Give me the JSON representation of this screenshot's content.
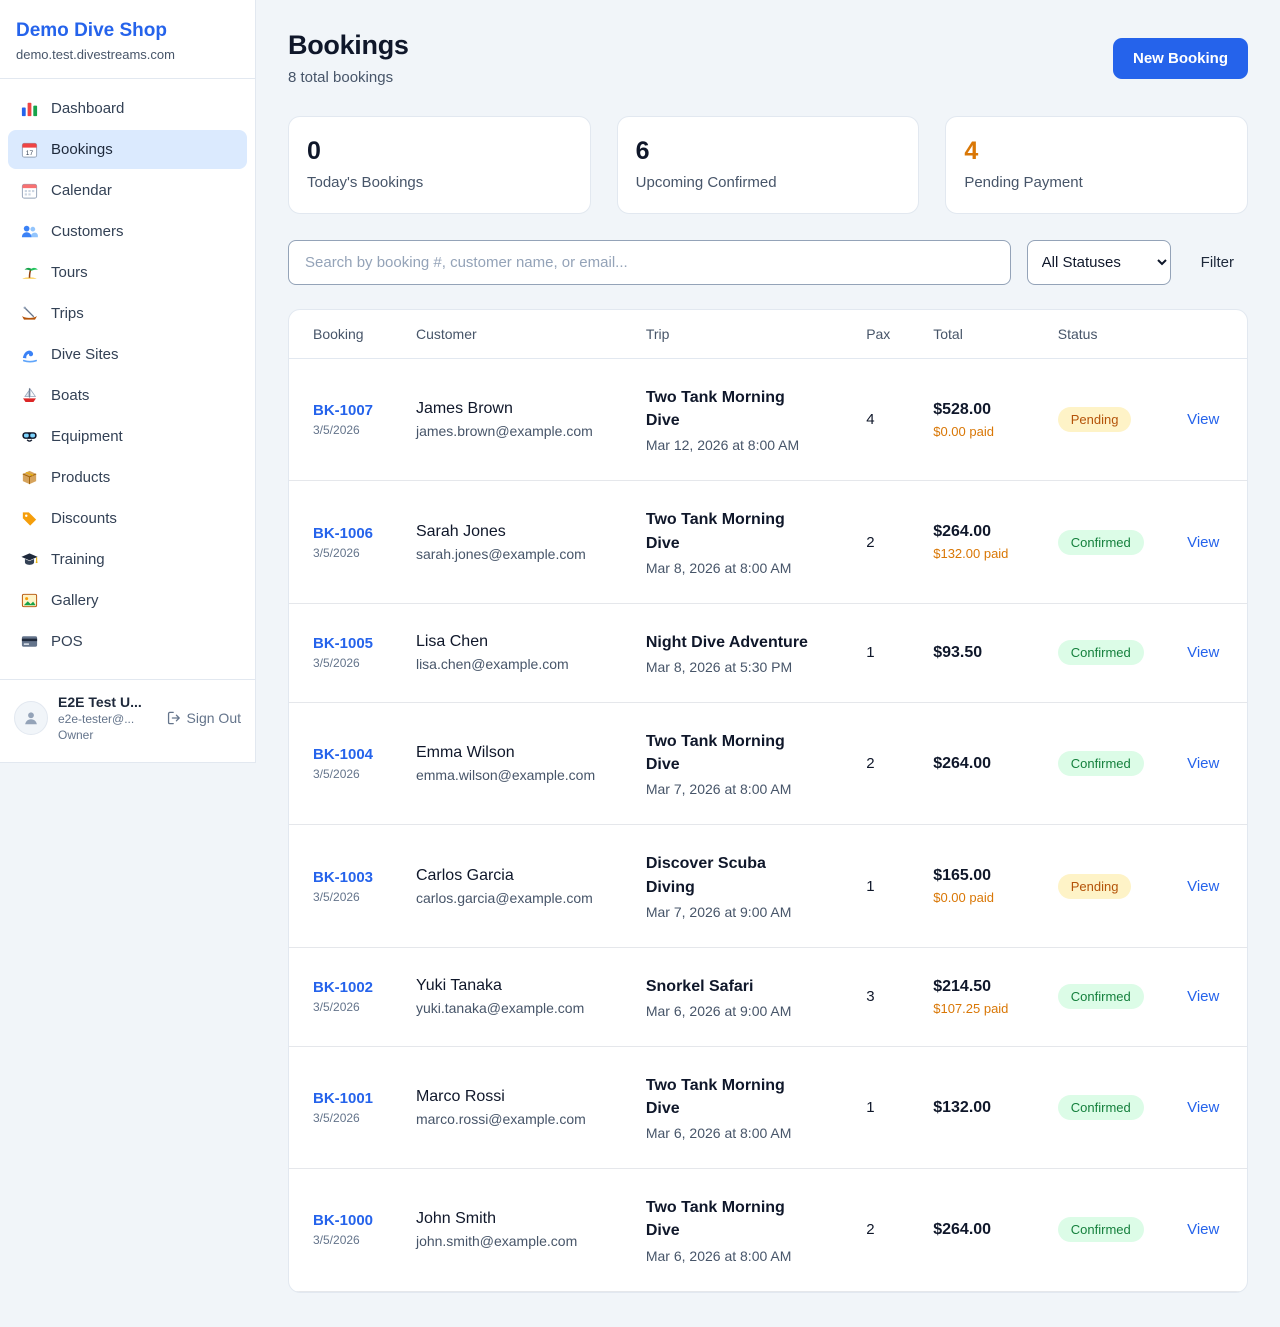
{
  "colors": {
    "accent": "#2563eb",
    "pending_badge_text": "#b45309",
    "confirmed_badge_text": "#15803d",
    "highlight_orange": "#d97706"
  },
  "sidebar": {
    "brand": {
      "name": "Demo Dive Shop",
      "domain": "demo.test.divestreams.com"
    },
    "items": [
      {
        "icon": "bar-chart-icon",
        "label": "Dashboard"
      },
      {
        "icon": "calendar-date-icon",
        "label": "Bookings",
        "state": "active"
      },
      {
        "icon": "calendar-icon",
        "label": "Calendar"
      },
      {
        "icon": "users-icon",
        "label": "Customers"
      },
      {
        "icon": "island-icon",
        "label": "Tours"
      },
      {
        "icon": "canoe-icon",
        "label": "Trips"
      },
      {
        "icon": "wave-icon",
        "label": "Dive Sites"
      },
      {
        "icon": "sailboat-icon",
        "label": "Boats"
      },
      {
        "icon": "dive-mask-icon",
        "label": "Equipment"
      },
      {
        "icon": "box-icon",
        "label": "Products"
      },
      {
        "icon": "tag-icon",
        "label": "Discounts"
      },
      {
        "icon": "grad-cap-icon",
        "label": "Training"
      },
      {
        "icon": "picture-icon",
        "label": "Gallery"
      },
      {
        "icon": "credit-card-icon",
        "label": "POS"
      }
    ],
    "user": {
      "name": "E2E Test U...",
      "email": "e2e-tester@...",
      "role": "Owner",
      "signout_label": "Sign Out"
    }
  },
  "header": {
    "title": "Bookings",
    "subtitle": "8 total bookings",
    "new_booking_label": "New Booking"
  },
  "stats": [
    {
      "value": "0",
      "label": "Today's Bookings"
    },
    {
      "value": "6",
      "label": "Upcoming Confirmed"
    },
    {
      "value": "4",
      "label": "Pending Payment",
      "tone": "orange"
    }
  ],
  "filters": {
    "search_placeholder": "Search by booking #, customer name, or email...",
    "status_selected": "All Statuses",
    "filter_label": "Filter"
  },
  "table": {
    "headers": [
      "Booking",
      "Customer",
      "Trip",
      "Pax",
      "Total",
      "Status"
    ],
    "view_label": "View",
    "rows": [
      {
        "id": "BK-1007",
        "date": "3/5/2026",
        "customer": "James Brown",
        "email": "james.brown@example.com",
        "trip": "Two Tank Morning Dive",
        "when": "Mar 12, 2026 at 8:00 AM",
        "pax": "4",
        "total": "$528.00",
        "paid": "$0.00 paid",
        "status": "Pending"
      },
      {
        "id": "BK-1006",
        "date": "3/5/2026",
        "customer": "Sarah Jones",
        "email": "sarah.jones@example.com",
        "trip": "Two Tank Morning Dive",
        "when": "Mar 8, 2026 at 8:00 AM",
        "pax": "2",
        "total": "$264.00",
        "paid": "$132.00 paid",
        "status": "Confirmed"
      },
      {
        "id": "BK-1005",
        "date": "3/5/2026",
        "customer": "Lisa Chen",
        "email": "lisa.chen@example.com",
        "trip": "Night Dive Adventure",
        "when": "Mar 8, 2026 at 5:30 PM",
        "pax": "1",
        "total": "$93.50",
        "status": "Confirmed"
      },
      {
        "id": "BK-1004",
        "date": "3/5/2026",
        "customer": "Emma Wilson",
        "email": "emma.wilson@example.com",
        "trip": "Two Tank Morning Dive",
        "when": "Mar 7, 2026 at 8:00 AM",
        "pax": "2",
        "total": "$264.00",
        "status": "Confirmed"
      },
      {
        "id": "BK-1003",
        "date": "3/5/2026",
        "customer": "Carlos Garcia",
        "email": "carlos.garcia@example.com",
        "trip": "Discover Scuba Diving",
        "when": "Mar 7, 2026 at 9:00 AM",
        "pax": "1",
        "total": "$165.00",
        "paid": "$0.00 paid",
        "status": "Pending"
      },
      {
        "id": "BK-1002",
        "date": "3/5/2026",
        "customer": "Yuki Tanaka",
        "email": "yuki.tanaka@example.com",
        "trip": "Snorkel Safari",
        "when": "Mar 6, 2026 at 9:00 AM",
        "pax": "3",
        "total": "$214.50",
        "paid": "$107.25 paid",
        "status": "Confirmed"
      },
      {
        "id": "BK-1001",
        "date": "3/5/2026",
        "customer": "Marco Rossi",
        "email": "marco.rossi@example.com",
        "trip": "Two Tank Morning Dive",
        "when": "Mar 6, 2026 at 8:00 AM",
        "pax": "1",
        "total": "$132.00",
        "status": "Confirmed"
      },
      {
        "id": "BK-1000",
        "date": "3/5/2026",
        "customer": "John Smith",
        "email": "john.smith@example.com",
        "trip": "Two Tank Morning Dive",
        "when": "Mar 6, 2026 at 8:00 AM",
        "pax": "2",
        "total": "$264.00",
        "status": "Confirmed"
      }
    ]
  }
}
